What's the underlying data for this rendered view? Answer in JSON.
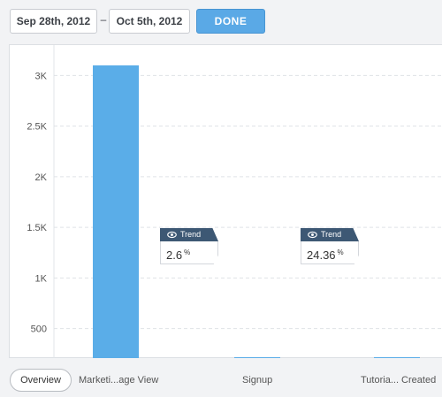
{
  "toolbar": {
    "date_start": "Sep 28th, 2012",
    "date_separator": "–",
    "date_end": "Oct 5th, 2012",
    "done_label": "DONE"
  },
  "footer": {
    "overview_label": "Overview"
  },
  "trend_badges": [
    {
      "title": "Trend",
      "value": "2.6",
      "unit": "%"
    },
    {
      "title": "Trend",
      "value": "24.36",
      "unit": "%"
    }
  ],
  "colors": {
    "bar": "#5aade8",
    "accent": "#5aa9e6",
    "badge_header": "#3d5874"
  },
  "chart_data": {
    "type": "bar",
    "categories": [
      "Marketi...age View",
      "Signup",
      "Tutoria... Created"
    ],
    "values": [
      3100,
      80,
      30
    ],
    "ylim": [
      200,
      3300
    ],
    "yticks": [
      500,
      1000,
      1500,
      2000,
      2500,
      3000
    ],
    "ytick_labels": [
      "500",
      "1K",
      "1.5K",
      "2K",
      "2.5K",
      "3K"
    ],
    "grid": true
  }
}
